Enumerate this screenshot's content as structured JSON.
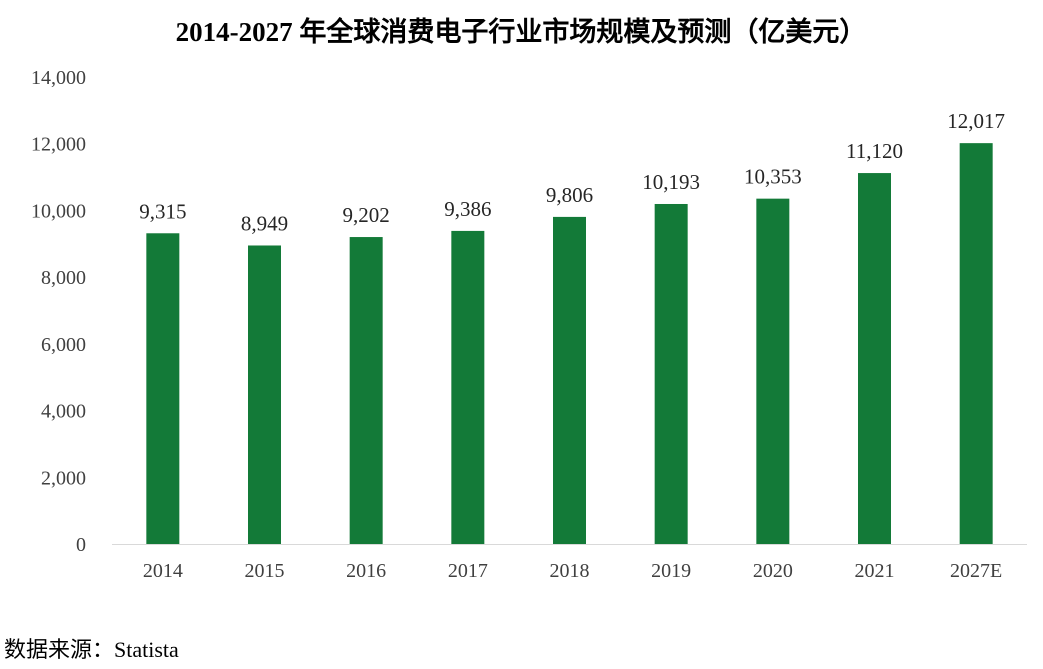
{
  "chart_data": {
    "type": "bar",
    "title": "2014-2027 年全球消费电子行业市场规模及预测（亿美元）",
    "categories": [
      "2014",
      "2015",
      "2016",
      "2017",
      "2018",
      "2019",
      "2020",
      "2021",
      "2027E"
    ],
    "values": [
      9315,
      8949,
      9202,
      9386,
      9806,
      10193,
      10353,
      11120,
      12017
    ],
    "value_labels": [
      "9,315",
      "8,949",
      "9,202",
      "9,386",
      "9,806",
      "10,193",
      "10,353",
      "11,120",
      "12,017"
    ],
    "yticks": [
      "0",
      "2,000",
      "4,000",
      "6,000",
      "8,000",
      "10,000",
      "12,000",
      "14,000"
    ],
    "ylim": [
      0,
      14000
    ],
    "bar_color": "#137a38",
    "grid": false,
    "legend": "none"
  },
  "source": "数据来源：Statista"
}
